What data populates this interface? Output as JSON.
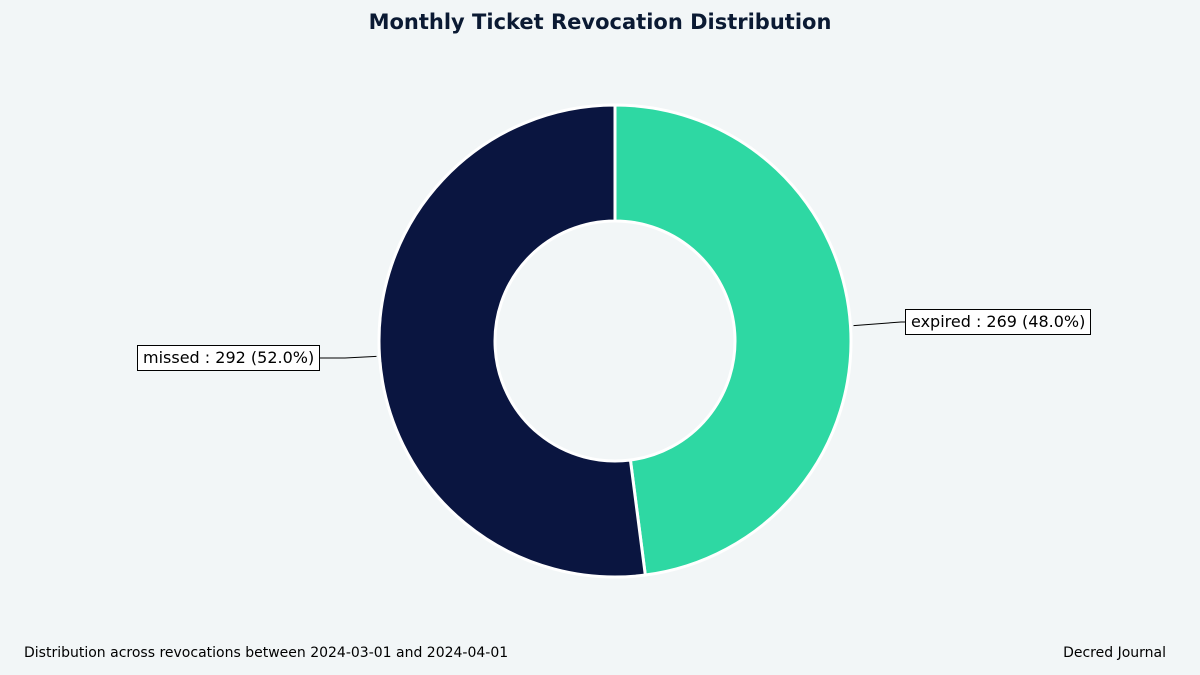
{
  "chart_data": {
    "type": "pie",
    "variant": "donut",
    "title": "Monthly Ticket Revocation Distribution",
    "slices": [
      {
        "name": "expired",
        "value": 269,
        "percent": 48.0,
        "label": "expired : 269 (48.0%)",
        "color": "#2ed8a3"
      },
      {
        "name": "missed",
        "value": 292,
        "percent": 52.0,
        "label": "missed : 292 (52.0%)",
        "color": "#0a1540"
      }
    ],
    "start": "top",
    "direction": "clockwise"
  },
  "footer": {
    "caption": "Distribution across revocations between 2024-03-01 and 2024-04-01",
    "source": "Decred Journal"
  }
}
